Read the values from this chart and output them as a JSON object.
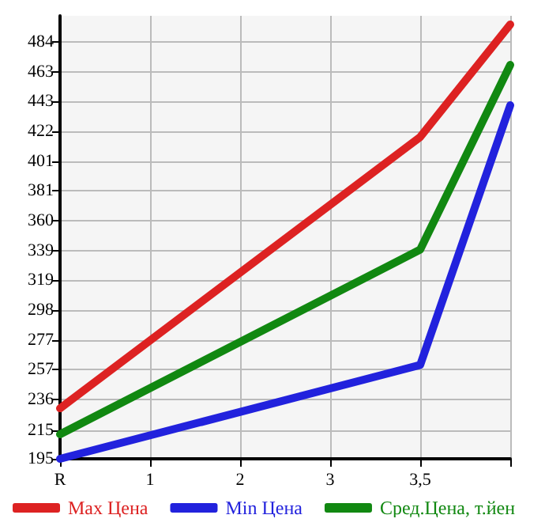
{
  "chart_data": {
    "type": "line",
    "categories": [
      "R",
      "1",
      "2",
      "3",
      "3,5",
      null
    ],
    "series": [
      {
        "name": "Max Цена",
        "color": "#dd2222",
        "values": [
          230,
          null,
          null,
          null,
          418,
          496
        ]
      },
      {
        "name": "Min Цена",
        "color": "#2222dd",
        "values": [
          195,
          null,
          null,
          null,
          260,
          440
        ]
      },
      {
        "name": "Сред.Цена, т.йен",
        "color": "#118811",
        "values": [
          212,
          null,
          null,
          null,
          340,
          468
        ]
      }
    ],
    "ylim": [
      195,
      502
    ],
    "yticks": [
      195,
      215,
      236,
      257,
      277,
      298,
      319,
      339,
      360,
      381,
      401,
      422,
      443,
      463,
      484
    ],
    "grid": true,
    "legend": "bottom",
    "marker": "none",
    "line_style": "solid"
  }
}
